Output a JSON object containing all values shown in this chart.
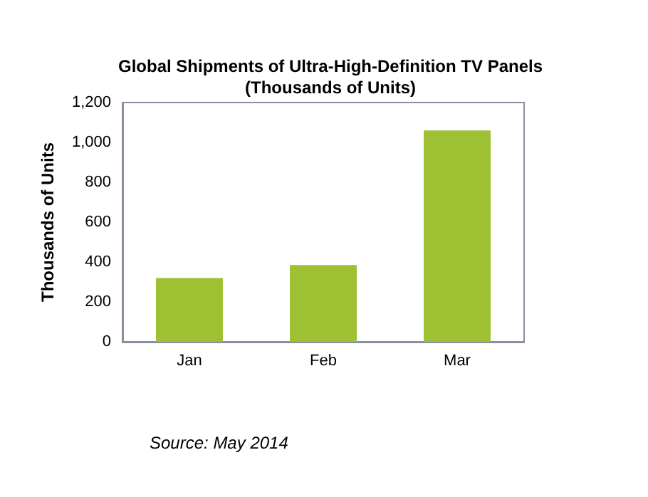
{
  "chart_data": {
    "type": "bar",
    "title": "Global Shipments of Ultra-High-Definition TV Panels\n(Thousands of Units)",
    "ylabel": "Thousands of Units",
    "categories": [
      "Jan",
      "Feb",
      "Mar"
    ],
    "values": [
      320,
      385,
      1060
    ],
    "color": "#9dc133",
    "ylim": [
      0,
      1200
    ],
    "yticks": [
      {
        "value": 0,
        "label": "0"
      },
      {
        "value": 200,
        "label": "200"
      },
      {
        "value": 400,
        "label": "400"
      },
      {
        "value": 600,
        "label": "600"
      },
      {
        "value": 800,
        "label": "800"
      },
      {
        "value": 1000,
        "label": "1,000"
      },
      {
        "value": 1200,
        "label": "1,200"
      }
    ],
    "grid": false,
    "annotations": [
      "Source: May 2014"
    ]
  }
}
